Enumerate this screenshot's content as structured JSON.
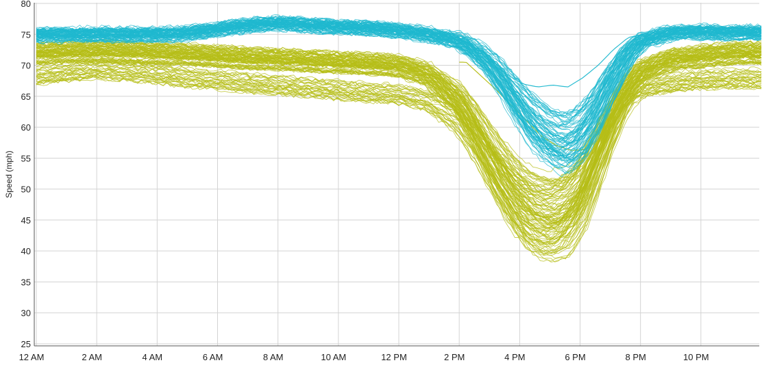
{
  "chart_data": {
    "type": "line",
    "title": "",
    "xlabel": "",
    "ylabel": "Speed (mph)",
    "ylim": [
      25,
      80
    ],
    "yticks": [
      25,
      30,
      35,
      40,
      45,
      50,
      55,
      60,
      65,
      70,
      75,
      80
    ],
    "xlim_hours": [
      0,
      24
    ],
    "xticks": [
      {
        "hour": 0,
        "label": "12 AM"
      },
      {
        "hour": 2,
        "label": "2 AM"
      },
      {
        "hour": 4,
        "label": "4 AM"
      },
      {
        "hour": 6,
        "label": "6 AM"
      },
      {
        "hour": 8,
        "label": "8 AM"
      },
      {
        "hour": 10,
        "label": "10 AM"
      },
      {
        "hour": 12,
        "label": "12 PM"
      },
      {
        "hour": 14,
        "label": "2 PM"
      },
      {
        "hour": 16,
        "label": "4 PM"
      },
      {
        "hour": 18,
        "label": "6 PM"
      },
      {
        "hour": 20,
        "label": "8 PM"
      },
      {
        "hour": 22,
        "label": "10 PM"
      }
    ],
    "grid": true,
    "legend": "none",
    "colors": {
      "series_a": "#1fb8cf",
      "series_b": "#b5bd17",
      "grid": "#d3d3d3"
    },
    "series": [
      {
        "group": "cyan",
        "color": "#1fb8cf",
        "x_hours": [
          0,
          1,
          2,
          3,
          4,
          5,
          6,
          7,
          8,
          9,
          10,
          11,
          12,
          13,
          14,
          14.5,
          15,
          15.5,
          16,
          16.5,
          17,
          17.5,
          18,
          18.5,
          19,
          19.5,
          20,
          21,
          22,
          23,
          24
        ],
        "values": [
          75.0,
          75.0,
          75.0,
          75.0,
          75.0,
          75.2,
          75.8,
          76.5,
          76.8,
          76.5,
          76.2,
          76.0,
          75.6,
          75.0,
          74.0,
          72.5,
          70.5,
          67.5,
          64.0,
          61.0,
          59.0,
          58.0,
          59.5,
          63.0,
          67.5,
          71.5,
          74.0,
          75.3,
          75.4,
          75.3,
          75.3
        ],
        "instances": 80
      },
      {
        "group": "cyan-outlier",
        "color": "#1fb8cf",
        "x_hours": [
          14,
          15,
          16,
          16.5,
          17,
          17.5,
          18,
          18.5,
          19,
          19.5,
          20
        ],
        "values": [
          73.5,
          70.0,
          67.0,
          66.5,
          66.8,
          66.5,
          68.0,
          70.0,
          72.5,
          74.5,
          75.0
        ],
        "instances": 1
      },
      {
        "group": "olive-main",
        "color": "#b5bd17",
        "x_hours": [
          0,
          1,
          2,
          3,
          4,
          5,
          6,
          7,
          8,
          9,
          10,
          11,
          12,
          13,
          14,
          14.5,
          15,
          15.5,
          16,
          16.5,
          17,
          17.5,
          18,
          18.5,
          19,
          19.5,
          20,
          21,
          22,
          23,
          24
        ],
        "values": [
          72.0,
          72.2,
          72.3,
          72.2,
          72.0,
          71.8,
          71.5,
          71.2,
          71.0,
          70.8,
          70.5,
          70.3,
          70.0,
          68.5,
          64.5,
          60.5,
          56.0,
          52.0,
          48.5,
          46.5,
          45.8,
          46.5,
          49.5,
          55.0,
          61.0,
          66.0,
          69.0,
          71.0,
          71.5,
          72.0,
          72.0
        ],
        "instances": 80
      },
      {
        "group": "olive-low",
        "color": "#b5bd17",
        "x_hours": [
          0,
          1,
          2,
          3,
          4,
          5,
          6,
          7,
          8,
          9,
          10,
          11,
          12,
          13,
          14,
          14.5,
          15,
          15.5,
          16,
          16.5,
          17,
          17.5,
          18,
          18.5,
          19,
          19.5,
          20,
          21,
          22,
          23,
          24
        ],
        "values": [
          68.5,
          69.0,
          69.5,
          69.2,
          68.8,
          68.2,
          67.8,
          67.3,
          67.0,
          66.6,
          66.2,
          65.8,
          65.5,
          64.5,
          61.5,
          58.5,
          55.0,
          51.5,
          48.5,
          46.5,
          45.5,
          46.5,
          49.5,
          55.0,
          60.5,
          64.5,
          66.5,
          67.3,
          67.8,
          68.0,
          68.0
        ],
        "instances": 30
      },
      {
        "group": "olive-outlier",
        "color": "#b5bd17",
        "x_hours": [
          14,
          15,
          16,
          16.5,
          17,
          17.5,
          18,
          18.5,
          19,
          19.5,
          20,
          21
        ],
        "values": [
          70.5,
          66.0,
          61.0,
          58.5,
          57.0,
          56.2,
          56.5,
          60.0,
          66.0,
          70.0,
          70.5,
          71.0
        ],
        "instances": 1
      }
    ]
  }
}
